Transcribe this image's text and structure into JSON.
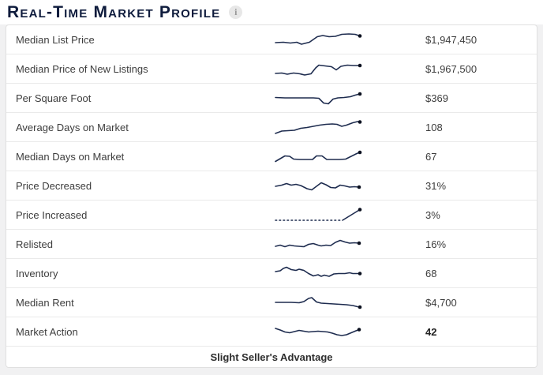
{
  "header": {
    "title": "Real-Time Market Profile",
    "info_icon_glyph": "i"
  },
  "colors": {
    "spark_line": "#1e2c4f",
    "spark_dot": "#0c1120",
    "title_text": "#0e1b3c"
  },
  "rows": [
    {
      "label": "Median List Price",
      "value": "$1,947,450",
      "bold": false,
      "spark": {
        "segments": [
          {
            "dashed": false,
            "points": [
              [
                3,
                17
              ],
              [
                13,
                16.5
              ],
              [
                22,
                17.5
              ],
              [
                30,
                16.5
              ],
              [
                36,
                19
              ],
              [
                46,
                16.5
              ],
              [
                56,
                9.5
              ],
              [
                63,
                8
              ],
              [
                71,
                9.5
              ],
              [
                79,
                9
              ],
              [
                87,
                6.5
              ],
              [
                96,
                6
              ],
              [
                104,
                6.5
              ],
              [
                110,
                8.5
              ]
            ]
          }
        ]
      }
    },
    {
      "label": "Median Price of New Listings",
      "value": "$1,967,500",
      "bold": false,
      "spark": {
        "segments": [
          {
            "dashed": false,
            "points": [
              [
                3,
                19
              ],
              [
                11,
                18.5
              ],
              [
                18,
                20
              ],
              [
                26,
                18.5
              ],
              [
                34,
                19.5
              ],
              [
                40,
                21
              ],
              [
                48,
                19.5
              ],
              [
                54,
                12
              ],
              [
                58,
                8.5
              ],
              [
                66,
                9.5
              ],
              [
                74,
                10.5
              ],
              [
                80,
                14.5
              ],
              [
                86,
                10
              ],
              [
                94,
                8.5
              ],
              [
                102,
                9
              ],
              [
                110,
                9
              ]
            ]
          }
        ]
      }
    },
    {
      "label": "Per Square Foot",
      "value": "$369",
      "bold": false,
      "spark": {
        "segments": [
          {
            "dashed": false,
            "points": [
              [
                3,
                12.5
              ],
              [
                15,
                13
              ],
              [
                27,
                13
              ],
              [
                39,
                13
              ],
              [
                51,
                13
              ],
              [
                58,
                13.5
              ],
              [
                64,
                19.5
              ],
              [
                70,
                20.5
              ],
              [
                76,
                14.5
              ],
              [
                82,
                13
              ],
              [
                90,
                12.5
              ],
              [
                98,
                11.5
              ],
              [
                104,
                9.5
              ],
              [
                110,
                8
              ]
            ]
          }
        ]
      }
    },
    {
      "label": "Average Days on Market",
      "value": "108",
      "bold": false,
      "spark": {
        "segments": [
          {
            "dashed": false,
            "points": [
              [
                3,
                21
              ],
              [
                11,
                18
              ],
              [
                19,
                17.5
              ],
              [
                27,
                17
              ],
              [
                35,
                14.5
              ],
              [
                43,
                13.5
              ],
              [
                51,
                12
              ],
              [
                59,
                10.5
              ],
              [
                67,
                9.5
              ],
              [
                75,
                9
              ],
              [
                81,
                9.5
              ],
              [
                87,
                12
              ],
              [
                93,
                10.5
              ],
              [
                101,
                7.5
              ],
              [
                107,
                6
              ],
              [
                110,
                6.5
              ]
            ]
          }
        ]
      }
    },
    {
      "label": "Median Days on Market",
      "value": "67",
      "bold": false,
      "spark": {
        "segments": [
          {
            "dashed": false,
            "points": [
              [
                3,
                19.5
              ],
              [
                9,
                16
              ],
              [
                15,
                12.5
              ],
              [
                21,
                13
              ],
              [
                26,
                16.5
              ],
              [
                34,
                17
              ],
              [
                42,
                17
              ],
              [
                50,
                17
              ],
              [
                55,
                12.5
              ],
              [
                62,
                12.5
              ],
              [
                68,
                17
              ],
              [
                76,
                17
              ],
              [
                84,
                17
              ],
              [
                92,
                16.5
              ],
              [
                100,
                12.5
              ],
              [
                106,
                9.5
              ],
              [
                110,
                8
              ]
            ]
          }
        ]
      }
    },
    {
      "label": "Price Decreased",
      "value": "31%",
      "bold": false,
      "spark": {
        "segments": [
          {
            "dashed": false,
            "points": [
              [
                3,
                14
              ],
              [
                11,
                12.5
              ],
              [
                17,
                10.5
              ],
              [
                23,
                12.5
              ],
              [
                29,
                11.5
              ],
              [
                35,
                13
              ],
              [
                43,
                17
              ],
              [
                49,
                18.5
              ],
              [
                55,
                14
              ],
              [
                61,
                9.5
              ],
              [
                67,
                12
              ],
              [
                73,
                15.5
              ],
              [
                79,
                16
              ],
              [
                85,
                12.5
              ],
              [
                91,
                13.5
              ],
              [
                97,
                15
              ],
              [
                103,
                14.5
              ],
              [
                109,
                15
              ]
            ]
          }
        ]
      }
    },
    {
      "label": "Price Increased",
      "value": "3%",
      "bold": false,
      "spark": {
        "segments": [
          {
            "dashed": true,
            "points": [
              [
                3,
                20
              ],
              [
                88,
                20
              ]
            ]
          },
          {
            "dashed": false,
            "points": [
              [
                88,
                20
              ],
              [
                110,
                6.5
              ]
            ]
          }
        ]
      }
    },
    {
      "label": "Relisted",
      "value": "16%",
      "bold": false,
      "spark": {
        "segments": [
          {
            "dashed": false,
            "points": [
              [
                3,
                16
              ],
              [
                9,
                14.5
              ],
              [
                15,
                16.5
              ],
              [
                21,
                14.5
              ],
              [
                27,
                15.5
              ],
              [
                33,
                16
              ],
              [
                39,
                16.5
              ],
              [
                45,
                13.5
              ],
              [
                51,
                12.5
              ],
              [
                57,
                14.5
              ],
              [
                61,
                15.5
              ],
              [
                67,
                14.5
              ],
              [
                73,
                15
              ],
              [
                79,
                11
              ],
              [
                85,
                8.5
              ],
              [
                91,
                10.5
              ],
              [
                97,
                12
              ],
              [
                103,
                11.5
              ],
              [
                109,
                12
              ]
            ]
          }
        ]
      }
    },
    {
      "label": "Inventory",
      "value": "68",
      "bold": false,
      "spark": {
        "segments": [
          {
            "dashed": false,
            "points": [
              [
                3,
                11
              ],
              [
                9,
                10
              ],
              [
                13,
                7
              ],
              [
                17,
                5.5
              ],
              [
                23,
                8.5
              ],
              [
                29,
                9.5
              ],
              [
                33,
                8
              ],
              [
                39,
                9.5
              ],
              [
                45,
                13.5
              ],
              [
                51,
                16.5
              ],
              [
                57,
                15
              ],
              [
                61,
                17
              ],
              [
                65,
                15.5
              ],
              [
                71,
                17
              ],
              [
                77,
                14
              ],
              [
                83,
                13.5
              ],
              [
                91,
                13.5
              ],
              [
                97,
                12.5
              ],
              [
                101,
                13.5
              ],
              [
                107,
                13.5
              ],
              [
                110,
                13.5
              ]
            ]
          }
        ]
      }
    },
    {
      "label": "Median Rent",
      "value": "$4,700",
      "bold": false,
      "spark": {
        "segments": [
          {
            "dashed": false,
            "points": [
              [
                3,
                13
              ],
              [
                13,
                13
              ],
              [
                23,
                13
              ],
              [
                33,
                13.5
              ],
              [
                39,
                12
              ],
              [
                45,
                8
              ],
              [
                49,
                7
              ],
              [
                55,
                12.5
              ],
              [
                61,
                14
              ],
              [
                69,
                14.5
              ],
              [
                77,
                15
              ],
              [
                85,
                15.5
              ],
              [
                93,
                16
              ],
              [
                101,
                17
              ],
              [
                107,
                18.5
              ],
              [
                110,
                19
              ]
            ]
          }
        ]
      }
    },
    {
      "label": "Market Action",
      "value": "42",
      "bold": true,
      "spark": {
        "segments": [
          {
            "dashed": false,
            "points": [
              [
                3,
                9
              ],
              [
                9,
                11
              ],
              [
                15,
                13.5
              ],
              [
                21,
                14.5
              ],
              [
                27,
                13
              ],
              [
                33,
                11.5
              ],
              [
                39,
                12.5
              ],
              [
                45,
                13.5
              ],
              [
                51,
                13
              ],
              [
                57,
                12.5
              ],
              [
                63,
                13
              ],
              [
                69,
                13.5
              ],
              [
                75,
                15
              ],
              [
                81,
                17
              ],
              [
                87,
                18
              ],
              [
                93,
                17
              ],
              [
                99,
                14.5
              ],
              [
                105,
                12
              ],
              [
                109,
                10.5
              ]
            ]
          }
        ]
      }
    }
  ],
  "footer_note": "Slight Seller's Advantage"
}
